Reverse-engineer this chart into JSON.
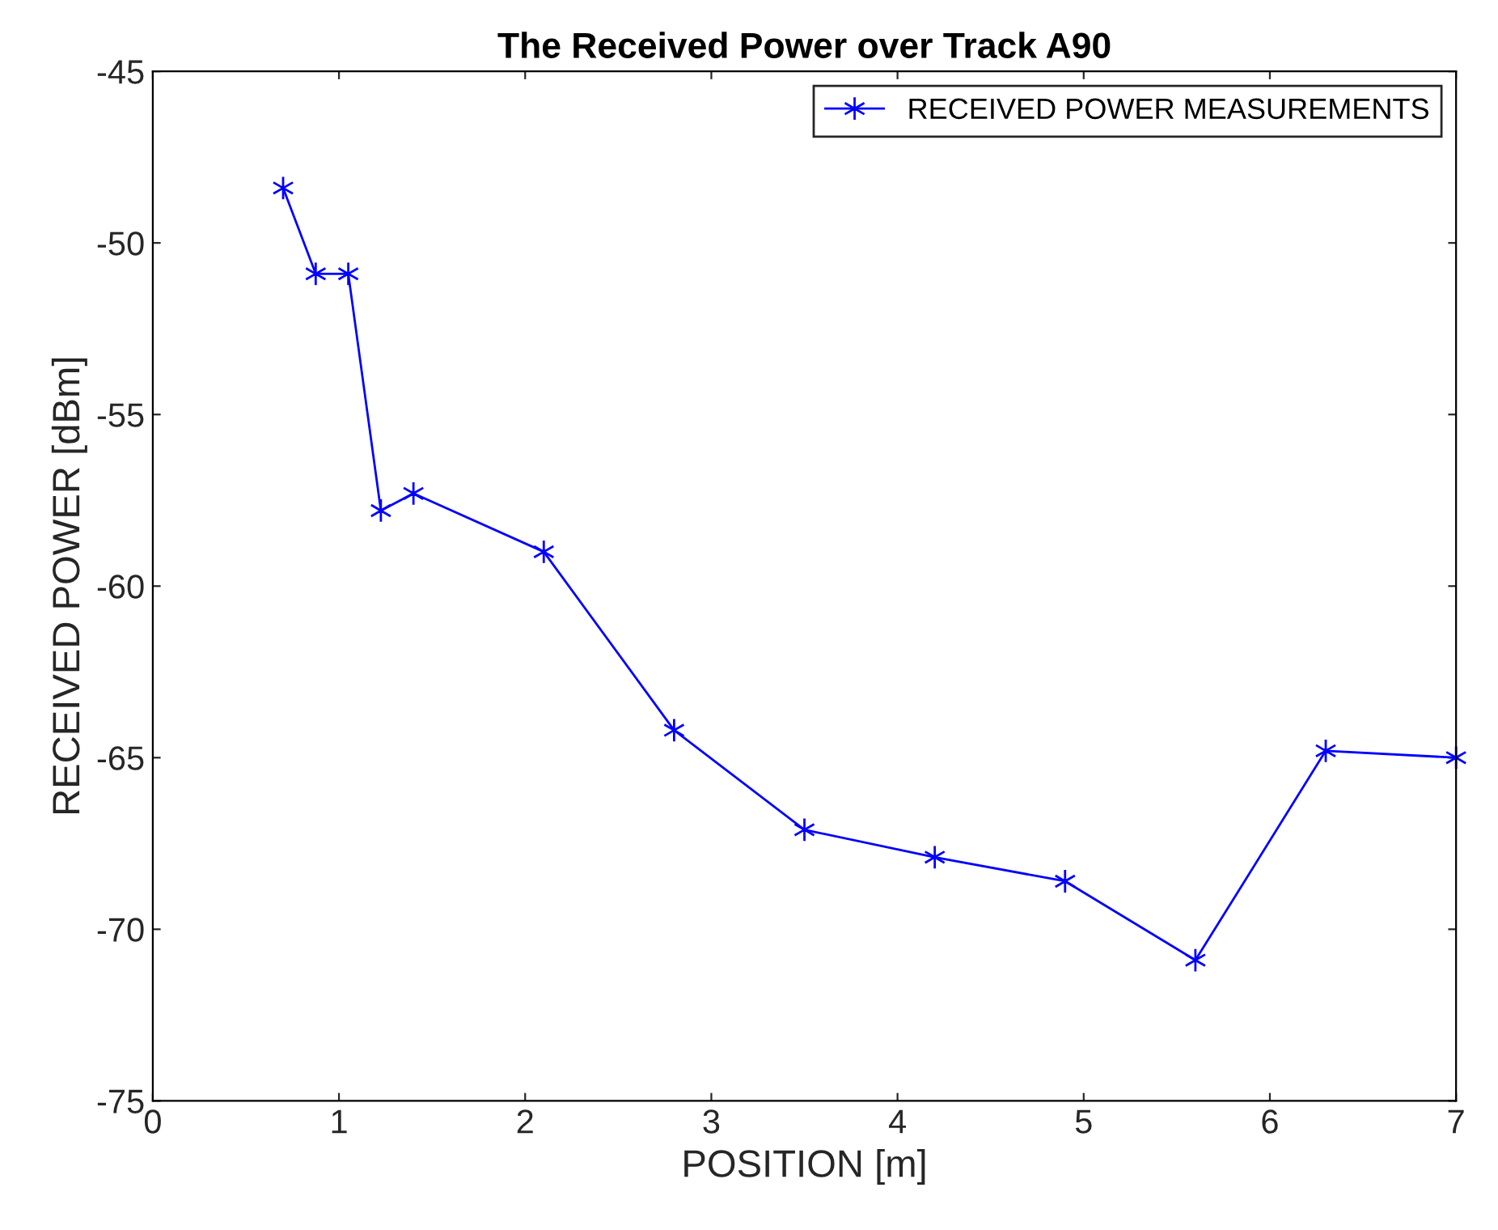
{
  "chart_data": {
    "type": "line",
    "title": "The Received Power over Track A90",
    "xlabel": "POSITION [m]",
    "ylabel": "RECEIVED POWER [dBm]",
    "x": [
      0.7,
      0.875,
      1.05,
      1.225,
      1.4,
      2.1,
      2.8,
      3.5,
      4.2,
      4.9,
      5.6,
      6.3,
      7.0
    ],
    "series": [
      {
        "name": "RECEIVED POWER MEASUREMENTS",
        "color": "#0000ff",
        "values": [
          -48.4,
          -50.9,
          -50.9,
          -57.8,
          -57.3,
          -59.0,
          -64.2,
          -67.1,
          -67.9,
          -68.6,
          -70.9,
          -64.8,
          -65.0
        ]
      }
    ],
    "xlim": [
      0,
      7
    ],
    "ylim": [
      -75,
      -45
    ],
    "xticks": [
      0,
      1,
      2,
      3,
      4,
      5,
      6,
      7
    ],
    "yticks": [
      -75,
      -70,
      -65,
      -60,
      -55,
      -50,
      -45
    ],
    "marker": "cross",
    "line_style": "solid",
    "legend": "top right",
    "grid": false
  }
}
